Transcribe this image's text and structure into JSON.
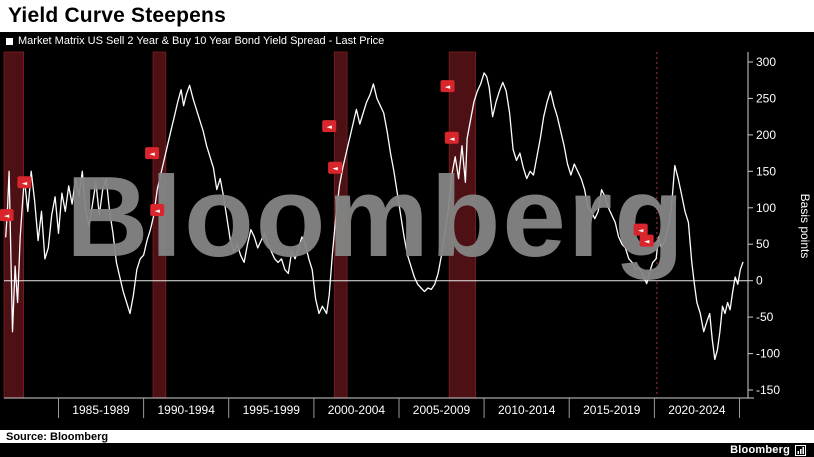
{
  "header": {
    "title": "Yield Curve Steepens"
  },
  "legend": {
    "label": "Market Matrix US Sell 2 Year & Buy 10 Year Bond Yield Spread - Last Price"
  },
  "watermark": "Bloomberg",
  "footer": {
    "source": "Source: Bloomberg",
    "brand": "Bloomberg"
  },
  "chart_data": {
    "type": "line",
    "title": "Yield Curve Steepens",
    "series_name": "Market Matrix US Sell 2 Year & Buy 10 Year Bond Yield Spread - Last Price",
    "xlabel": "",
    "ylabel": "Basis points",
    "ylim": [
      -150,
      300
    ],
    "xlim": [
      1981.8,
      2025.5
    ],
    "grid": false,
    "legend_position": "top-left",
    "y_ticks": [
      300,
      250,
      200,
      150,
      100,
      50,
      0,
      -50,
      -100,
      -150
    ],
    "x_bins": [
      "1985-1989",
      "1990-1994",
      "1995-1999",
      "2000-2004",
      "2005-2009",
      "2010-2014",
      "2015-2019",
      "2020-2024"
    ],
    "x_bin_edges": [
      1985,
      1990,
      1995,
      2000,
      2005,
      2010,
      2015,
      2020,
      2025
    ],
    "zero_line": 0,
    "recessions": [
      {
        "start": 1981.8,
        "end": 1982.95
      },
      {
        "start": 1990.55,
        "end": 1991.3
      },
      {
        "start": 2001.2,
        "end": 2001.95
      },
      {
        "start": 2007.95,
        "end": 2009.5
      }
    ],
    "event_line": {
      "year": 2020.15,
      "style": "dashed"
    },
    "markers": [
      {
        "year": 1981.95,
        "value": 90
      },
      {
        "year": 1983.0,
        "value": 135
      },
      {
        "year": 1990.5,
        "value": 175
      },
      {
        "year": 1990.8,
        "value": 97
      },
      {
        "year": 2000.9,
        "value": 212
      },
      {
        "year": 2001.25,
        "value": 155
      },
      {
        "year": 2007.85,
        "value": 267
      },
      {
        "year": 2008.1,
        "value": 196
      },
      {
        "year": 2019.2,
        "value": 70
      },
      {
        "year": 2019.55,
        "value": 55
      }
    ],
    "colors": {
      "background": "#000000",
      "line": "#ffffff",
      "band": "#4d1115",
      "band_edge": "#7e1f1f",
      "event_line": "#b03535",
      "marker": "#d8262c",
      "watermark": "#858585"
    },
    "points": [
      [
        1981.9,
        60
      ],
      [
        1982.0,
        95
      ],
      [
        1982.1,
        150
      ],
      [
        1982.2,
        40
      ],
      [
        1982.3,
        -70
      ],
      [
        1982.45,
        20
      ],
      [
        1982.6,
        -30
      ],
      [
        1982.75,
        60
      ],
      [
        1982.9,
        110
      ],
      [
        1983.0,
        140
      ],
      [
        1983.2,
        95
      ],
      [
        1983.4,
        150
      ],
      [
        1983.6,
        110
      ],
      [
        1983.8,
        55
      ],
      [
        1984.0,
        95
      ],
      [
        1984.2,
        30
      ],
      [
        1984.4,
        45
      ],
      [
        1984.6,
        90
      ],
      [
        1984.8,
        115
      ],
      [
        1985.0,
        65
      ],
      [
        1985.2,
        120
      ],
      [
        1985.4,
        95
      ],
      [
        1985.6,
        130
      ],
      [
        1985.8,
        105
      ],
      [
        1986.0,
        140
      ],
      [
        1986.2,
        115
      ],
      [
        1986.4,
        150
      ],
      [
        1986.6,
        95
      ],
      [
        1986.8,
        75
      ],
      [
        1987.0,
        105
      ],
      [
        1987.2,
        135
      ],
      [
        1987.4,
        90
      ],
      [
        1987.6,
        125
      ],
      [
        1987.8,
        140
      ],
      [
        1988.0,
        95
      ],
      [
        1988.2,
        65
      ],
      [
        1988.4,
        25
      ],
      [
        1988.6,
        5
      ],
      [
        1988.8,
        -15
      ],
      [
        1989.0,
        -30
      ],
      [
        1989.2,
        -45
      ],
      [
        1989.4,
        -20
      ],
      [
        1989.6,
        15
      ],
      [
        1989.8,
        30
      ],
      [
        1990.0,
        35
      ],
      [
        1990.2,
        55
      ],
      [
        1990.4,
        70
      ],
      [
        1990.6,
        90
      ],
      [
        1990.8,
        125
      ],
      [
        1991.0,
        145
      ],
      [
        1991.2,
        165
      ],
      [
        1991.4,
        185
      ],
      [
        1991.6,
        205
      ],
      [
        1991.8,
        225
      ],
      [
        1992.0,
        245
      ],
      [
        1992.2,
        262
      ],
      [
        1992.35,
        240
      ],
      [
        1992.5,
        255
      ],
      [
        1992.7,
        268
      ],
      [
        1992.9,
        250
      ],
      [
        1993.1,
        235
      ],
      [
        1993.3,
        220
      ],
      [
        1993.5,
        205
      ],
      [
        1993.7,
        185
      ],
      [
        1993.9,
        170
      ],
      [
        1994.1,
        155
      ],
      [
        1994.3,
        125
      ],
      [
        1994.5,
        140
      ],
      [
        1994.7,
        115
      ],
      [
        1994.9,
        85
      ],
      [
        1995.1,
        55
      ],
      [
        1995.3,
        40
      ],
      [
        1995.5,
        50
      ],
      [
        1995.7,
        35
      ],
      [
        1995.9,
        25
      ],
      [
        1996.1,
        50
      ],
      [
        1996.3,
        70
      ],
      [
        1996.5,
        60
      ],
      [
        1996.7,
        45
      ],
      [
        1996.9,
        55
      ],
      [
        1997.1,
        65
      ],
      [
        1997.3,
        50
      ],
      [
        1997.5,
        40
      ],
      [
        1997.7,
        30
      ],
      [
        1997.9,
        25
      ],
      [
        1998.1,
        30
      ],
      [
        1998.3,
        15
      ],
      [
        1998.5,
        10
      ],
      [
        1998.7,
        40
      ],
      [
        1998.9,
        30
      ],
      [
        1999.1,
        45
      ],
      [
        1999.3,
        60
      ],
      [
        1999.5,
        50
      ],
      [
        1999.7,
        30
      ],
      [
        1999.9,
        15
      ],
      [
        2000.1,
        -25
      ],
      [
        2000.3,
        -45
      ],
      [
        2000.5,
        -35
      ],
      [
        2000.75,
        -45
      ],
      [
        2000.9,
        -20
      ],
      [
        2001.1,
        40
      ],
      [
        2001.3,
        90
      ],
      [
        2001.5,
        130
      ],
      [
        2001.7,
        155
      ],
      [
        2001.9,
        175
      ],
      [
        2002.1,
        195
      ],
      [
        2002.3,
        215
      ],
      [
        2002.5,
        235
      ],
      [
        2002.7,
        215
      ],
      [
        2002.9,
        230
      ],
      [
        2003.1,
        245
      ],
      [
        2003.3,
        255
      ],
      [
        2003.5,
        270
      ],
      [
        2003.7,
        250
      ],
      [
        2003.9,
        240
      ],
      [
        2004.1,
        230
      ],
      [
        2004.3,
        205
      ],
      [
        2004.5,
        175
      ],
      [
        2004.7,
        150
      ],
      [
        2004.9,
        120
      ],
      [
        2005.1,
        90
      ],
      [
        2005.3,
        60
      ],
      [
        2005.5,
        35
      ],
      [
        2005.7,
        20
      ],
      [
        2005.9,
        5
      ],
      [
        2006.1,
        -5
      ],
      [
        2006.3,
        -10
      ],
      [
        2006.5,
        -15
      ],
      [
        2006.7,
        -10
      ],
      [
        2006.9,
        -12
      ],
      [
        2007.1,
        -5
      ],
      [
        2007.3,
        10
      ],
      [
        2007.5,
        35
      ],
      [
        2007.7,
        65
      ],
      [
        2007.9,
        100
      ],
      [
        2008.1,
        145
      ],
      [
        2008.3,
        170
      ],
      [
        2008.5,
        140
      ],
      [
        2008.7,
        185
      ],
      [
        2008.9,
        135
      ],
      [
        2009.0,
        195
      ],
      [
        2009.2,
        220
      ],
      [
        2009.4,
        245
      ],
      [
        2009.6,
        260
      ],
      [
        2009.8,
        270
      ],
      [
        2010.0,
        285
      ],
      [
        2010.15,
        280
      ],
      [
        2010.3,
        265
      ],
      [
        2010.5,
        225
      ],
      [
        2010.7,
        245
      ],
      [
        2010.9,
        260
      ],
      [
        2011.1,
        272
      ],
      [
        2011.3,
        260
      ],
      [
        2011.5,
        230
      ],
      [
        2011.7,
        180
      ],
      [
        2011.9,
        165
      ],
      [
        2012.1,
        175
      ],
      [
        2012.3,
        155
      ],
      [
        2012.5,
        140
      ],
      [
        2012.7,
        150
      ],
      [
        2012.9,
        145
      ],
      [
        2013.1,
        170
      ],
      [
        2013.3,
        195
      ],
      [
        2013.5,
        225
      ],
      [
        2013.7,
        245
      ],
      [
        2013.9,
        260
      ],
      [
        2014.1,
        240
      ],
      [
        2014.3,
        225
      ],
      [
        2014.5,
        205
      ],
      [
        2014.7,
        185
      ],
      [
        2014.9,
        160
      ],
      [
        2015.1,
        145
      ],
      [
        2015.3,
        160
      ],
      [
        2015.5,
        150
      ],
      [
        2015.7,
        140
      ],
      [
        2015.9,
        125
      ],
      [
        2016.1,
        100
      ],
      [
        2016.3,
        95
      ],
      [
        2016.5,
        85
      ],
      [
        2016.7,
        95
      ],
      [
        2016.9,
        125
      ],
      [
        2017.1,
        115
      ],
      [
        2017.3,
        100
      ],
      [
        2017.5,
        90
      ],
      [
        2017.7,
        80
      ],
      [
        2017.9,
        60
      ],
      [
        2018.1,
        50
      ],
      [
        2018.3,
        45
      ],
      [
        2018.5,
        30
      ],
      [
        2018.7,
        25
      ],
      [
        2018.9,
        15
      ],
      [
        2019.1,
        18
      ],
      [
        2019.3,
        10
      ],
      [
        2019.55,
        -4
      ],
      [
        2019.7,
        10
      ],
      [
        2019.9,
        25
      ],
      [
        2020.1,
        30
      ],
      [
        2020.25,
        60
      ],
      [
        2020.4,
        45
      ],
      [
        2020.6,
        55
      ],
      [
        2020.8,
        70
      ],
      [
        2021.0,
        100
      ],
      [
        2021.2,
        158
      ],
      [
        2021.4,
        140
      ],
      [
        2021.6,
        118
      ],
      [
        2021.8,
        95
      ],
      [
        2022.0,
        80
      ],
      [
        2022.2,
        25
      ],
      [
        2022.35,
        -5
      ],
      [
        2022.5,
        -30
      ],
      [
        2022.7,
        -45
      ],
      [
        2022.9,
        -70
      ],
      [
        2023.1,
        -55
      ],
      [
        2023.25,
        -45
      ],
      [
        2023.4,
        -80
      ],
      [
        2023.55,
        -108
      ],
      [
        2023.7,
        -95
      ],
      [
        2023.85,
        -70
      ],
      [
        2024.0,
        -35
      ],
      [
        2024.15,
        -45
      ],
      [
        2024.3,
        -30
      ],
      [
        2024.45,
        -40
      ],
      [
        2024.6,
        -15
      ],
      [
        2024.75,
        5
      ],
      [
        2024.9,
        -5
      ],
      [
        2025.05,
        15
      ],
      [
        2025.2,
        25
      ]
    ]
  }
}
